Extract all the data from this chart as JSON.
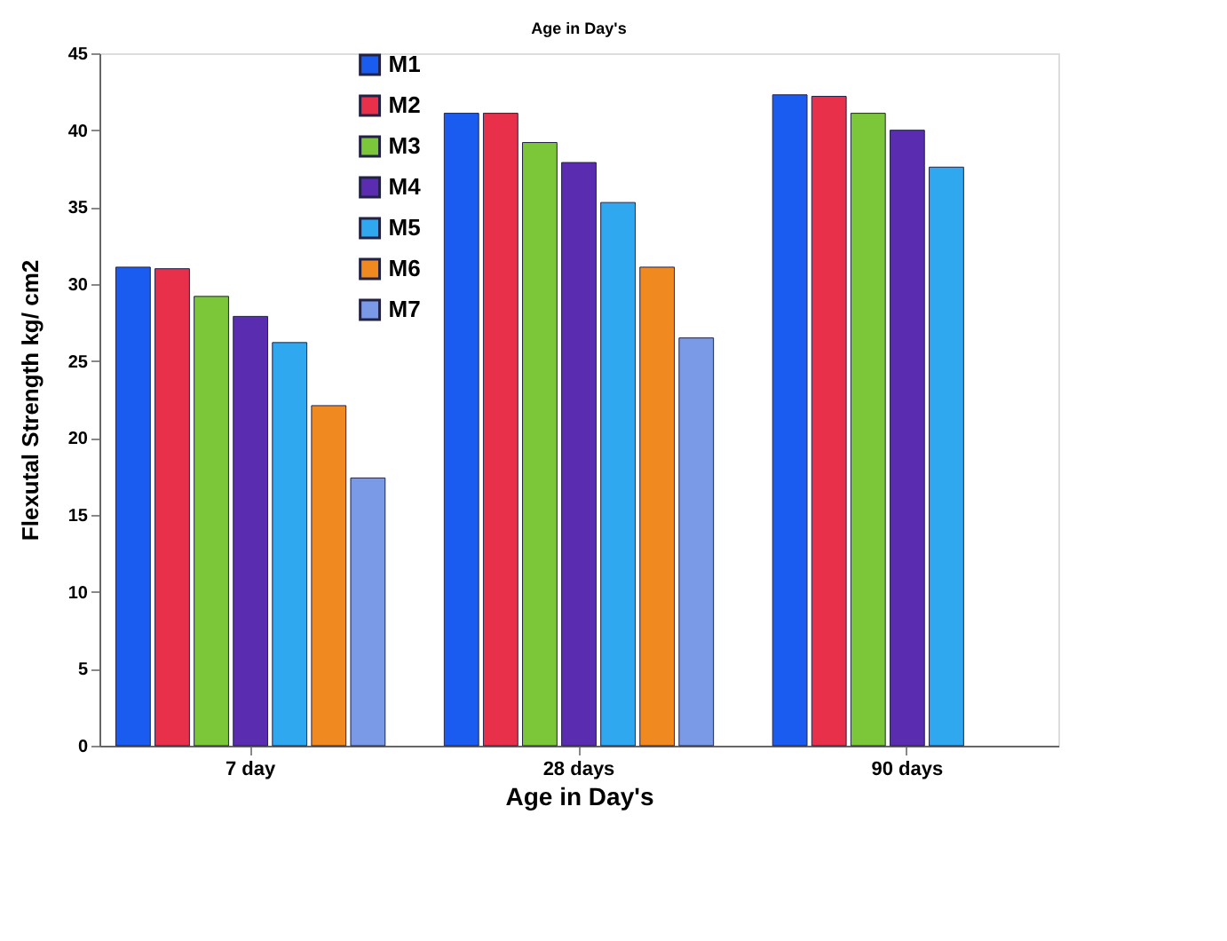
{
  "chart_data": {
    "type": "bar",
    "title": "Age in Day's",
    "xlabel": "Age in Day's",
    "ylabel": "Flexutal Strength kg/ cm2",
    "categories": [
      "7 day",
      "28 days",
      "90 days"
    ],
    "series": [
      {
        "name": "M1",
        "color": "#1a5cf0",
        "values": [
          31.1,
          41.1,
          42.3
        ]
      },
      {
        "name": "M2",
        "color": "#e8304a",
        "values": [
          31.0,
          41.1,
          42.2
        ]
      },
      {
        "name": "M3",
        "color": "#7cc63a",
        "values": [
          29.2,
          39.2,
          41.1
        ]
      },
      {
        "name": "M4",
        "color": "#5a2db0",
        "values": [
          27.9,
          37.9,
          40.0
        ]
      },
      {
        "name": "M5",
        "color": "#2fa8f0",
        "values": [
          26.2,
          35.3,
          37.6
        ]
      },
      {
        "name": "M6",
        "color": "#f08a20",
        "values": [
          22.1,
          31.1,
          null
        ]
      },
      {
        "name": "M7",
        "color": "#7a9ae8",
        "values": [
          17.4,
          26.5,
          null
        ]
      }
    ],
    "ylim": [
      0,
      45
    ],
    "yticks": [
      0,
      5,
      10,
      15,
      20,
      25,
      30,
      35,
      40,
      45
    ],
    "grid": false,
    "legend": "top left"
  }
}
